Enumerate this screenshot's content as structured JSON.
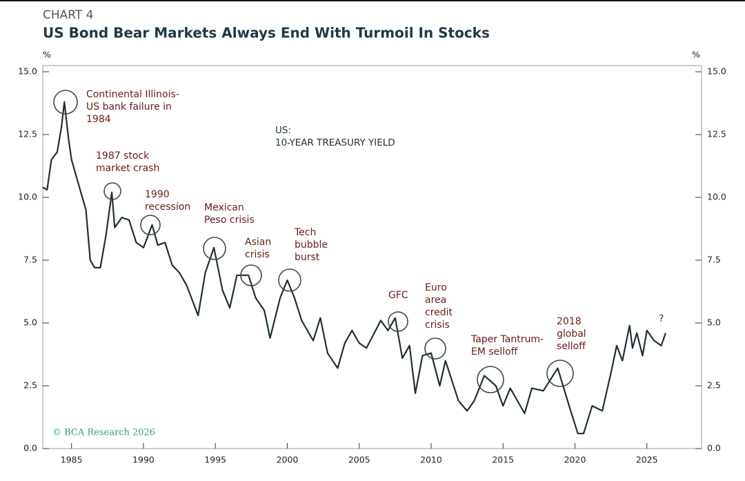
{
  "chart_data": {
    "type": "line",
    "kicker": "CHART 4",
    "title": "US Bond Bear Markets Always End With Turmoil In Stocks",
    "y_unit": "%",
    "series_label": [
      "US:",
      "10-YEAR TREASURY YIELD"
    ],
    "source": "© BCA Research 2026",
    "x": [
      1983.0,
      1983.3,
      1983.6,
      1984.0,
      1984.3,
      1984.5,
      1984.8,
      1985.0,
      1985.5,
      1986.0,
      1986.3,
      1986.6,
      1987.0,
      1987.4,
      1987.8,
      1988.0,
      1988.5,
      1989.0,
      1989.5,
      1990.0,
      1990.6,
      1991.0,
      1991.5,
      1992.0,
      1992.5,
      1993.0,
      1993.8,
      1994.3,
      1994.9,
      1995.5,
      1996.0,
      1996.5,
      1997.3,
      1997.8,
      1998.4,
      1998.8,
      1999.5,
      2000.0,
      2000.5,
      2001.0,
      2001.8,
      2002.3,
      2002.8,
      2003.5,
      2004.0,
      2004.5,
      2005.0,
      2005.5,
      2006.5,
      2007.0,
      2007.5,
      2008.0,
      2008.5,
      2008.9,
      2009.4,
      2010.0,
      2010.6,
      2011.0,
      2011.9,
      2012.5,
      2013.0,
      2013.7,
      2014.5,
      2015.0,
      2015.5,
      2016.5,
      2017.0,
      2017.8,
      2018.8,
      2019.7,
      2020.2,
      2020.6,
      2021.2,
      2021.9,
      2022.5,
      2022.9,
      2023.3,
      2023.8,
      2024.0,
      2024.3,
      2024.7,
      2025.0,
      2025.5,
      2026.0,
      2026.3
    ],
    "series": [
      {
        "name": "10-Year Treasury Yield",
        "color": "#1d2f33",
        "values": [
          10.4,
          10.3,
          11.5,
          11.8,
          12.8,
          13.8,
          12.3,
          11.5,
          10.5,
          9.5,
          7.5,
          7.2,
          7.2,
          8.5,
          10.2,
          8.8,
          9.2,
          9.1,
          8.2,
          8.0,
          8.9,
          8.1,
          8.2,
          7.3,
          7.0,
          6.5,
          5.3,
          7.0,
          8.0,
          6.3,
          5.6,
          6.9,
          6.9,
          6.0,
          5.5,
          4.4,
          6.0,
          6.7,
          6.0,
          5.1,
          4.3,
          5.2,
          3.8,
          3.2,
          4.2,
          4.7,
          4.2,
          4.0,
          5.1,
          4.7,
          5.2,
          3.6,
          4.1,
          2.2,
          3.7,
          3.8,
          2.5,
          3.5,
          1.9,
          1.5,
          1.9,
          2.9,
          2.5,
          1.7,
          2.4,
          1.4,
          2.4,
          2.3,
          3.2,
          1.5,
          0.6,
          0.6,
          1.7,
          1.5,
          3.0,
          4.1,
          3.5,
          4.9,
          4.0,
          4.6,
          3.7,
          4.7,
          4.3,
          4.1,
          4.6
        ]
      }
    ],
    "xlim": [
      1983.0,
      2028.8
    ],
    "ylim": [
      0,
      15
    ],
    "xticks": [
      1985,
      1990,
      1995,
      2000,
      2005,
      2010,
      2015,
      2020,
      2025
    ],
    "yticks": [
      {
        "value": 0,
        "label": "0.0"
      },
      {
        "value": 2.5,
        "label": "2.5"
      },
      {
        "value": 5,
        "label": "5.0"
      },
      {
        "value": 7.5,
        "label": "7.5"
      },
      {
        "value": 10,
        "label": "10.0"
      },
      {
        "value": 12.5,
        "label": "12.5"
      },
      {
        "value": 15,
        "label": "15.0"
      }
    ],
    "annotations": [
      [
        "Continental Illinois-",
        "US bank failure in",
        "1984"
      ],
      [
        "1987 stock",
        "market crash"
      ],
      [
        "1990",
        "recession"
      ],
      [
        "Mexican",
        "Peso crisis"
      ],
      [
        "Asian",
        "crisis"
      ],
      [
        "Tech",
        "bubble",
        "burst"
      ],
      [
        "GFC"
      ],
      [
        "Euro",
        "area",
        "credit",
        "crisis"
      ],
      [
        "Taper Tantrum-",
        "EM selloff"
      ],
      [
        "2018",
        "global",
        "selloff"
      ],
      [
        "?"
      ]
    ]
  }
}
